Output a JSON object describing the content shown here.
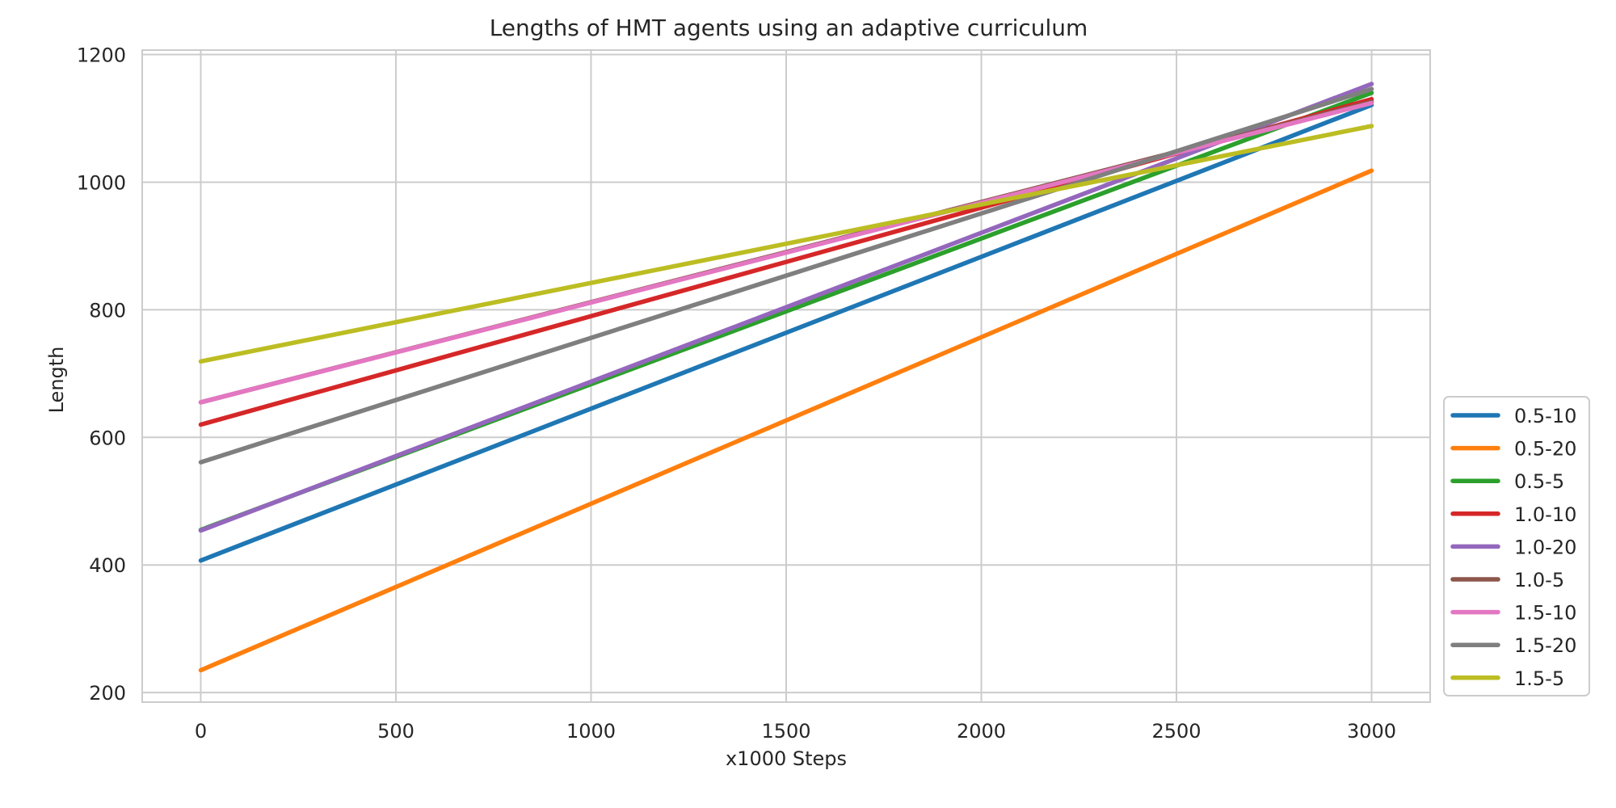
{
  "chart_data": {
    "type": "line",
    "title": "Lengths of HMT agents using an adaptive curriculum",
    "xlabel": "x1000 Steps",
    "ylabel": "Length",
    "xlim": [
      -150,
      3150
    ],
    "ylim": [
      185,
      1207
    ],
    "xticks": [
      0,
      500,
      1000,
      1500,
      2000,
      2500,
      3000
    ],
    "yticks": [
      200,
      400,
      600,
      800,
      1000,
      1200
    ],
    "grid": true,
    "legend_position": "lower right, outside plot",
    "series": [
      {
        "name": "0.5-10",
        "color": "#1f77b4",
        "x": [
          0,
          3000
        ],
        "y": [
          407,
          1121
        ]
      },
      {
        "name": "0.5-20",
        "color": "#ff7f0e",
        "x": [
          0,
          3000
        ],
        "y": [
          235,
          1018
        ]
      },
      {
        "name": "0.5-5",
        "color": "#2ca02c",
        "x": [
          0,
          3000
        ],
        "y": [
          455,
          1140
        ]
      },
      {
        "name": "1.0-10",
        "color": "#d62728",
        "x": [
          0,
          3000
        ],
        "y": [
          620,
          1130
        ]
      },
      {
        "name": "1.0-20",
        "color": "#9467bd",
        "x": [
          0,
          3000
        ],
        "y": [
          454,
          1154
        ]
      },
      {
        "name": "1.0-5",
        "color": "#8c564b",
        "x": [
          0,
          3000
        ],
        "y": [
          655,
          1126
        ]
      },
      {
        "name": "1.5-10",
        "color": "#e377c2",
        "x": [
          0,
          3000
        ],
        "y": [
          655,
          1124
        ]
      },
      {
        "name": "1.5-20",
        "color": "#7f7f7f",
        "x": [
          0,
          3000
        ],
        "y": [
          561,
          1146
        ]
      },
      {
        "name": "1.5-5",
        "color": "#bcbd22",
        "x": [
          0,
          3000
        ],
        "y": [
          719,
          1088
        ]
      }
    ]
  }
}
